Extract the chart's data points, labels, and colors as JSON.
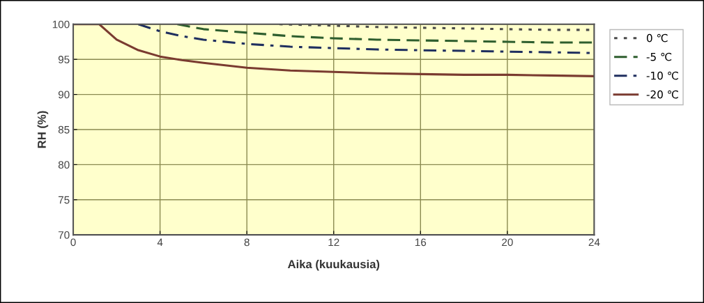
{
  "chart_data": {
    "type": "line",
    "xlabel": "Aika (kuukausia)",
    "ylabel": "RH (%)",
    "xlim": [
      0,
      24
    ],
    "xticks": [
      0,
      4,
      8,
      12,
      16,
      20,
      24
    ],
    "ylim": [
      70,
      100
    ],
    "yticks": [
      70,
      75,
      80,
      85,
      90,
      95,
      100
    ],
    "grid": true,
    "legend": "right",
    "marker": "none",
    "series": [
      {
        "name": "0 ℃",
        "color": "#4a4a4a",
        "line_style": "dotted",
        "x": [
          9.5,
          12,
          14,
          16,
          18,
          20,
          22,
          24
        ],
        "values": [
          100,
          99.8,
          99.6,
          99.5,
          99.4,
          99.3,
          99.2,
          99.2
        ]
      },
      {
        "name": "-5 ℃",
        "color": "#2e5e2e",
        "line_style": "dashed",
        "x": [
          4.8,
          6,
          8,
          10,
          12,
          14,
          16,
          18,
          20,
          22,
          24
        ],
        "values": [
          100,
          99.3,
          98.8,
          98.3,
          98.0,
          97.8,
          97.7,
          97.6,
          97.5,
          97.4,
          97.4
        ]
      },
      {
        "name": "-10 ℃",
        "color": "#1f2f5f",
        "line_style": "dashdot",
        "x": [
          3,
          4,
          5,
          6,
          8,
          10,
          12,
          14,
          16,
          18,
          20,
          22,
          24
        ],
        "values": [
          100,
          99.0,
          98.3,
          97.8,
          97.2,
          96.8,
          96.6,
          96.4,
          96.3,
          96.2,
          96.1,
          96.0,
          95.9
        ]
      },
      {
        "name": "-20 ℃",
        "color": "#7a3b30",
        "line_style": "solid",
        "x": [
          0,
          1.2,
          2,
          3,
          4,
          5,
          6,
          8,
          10,
          12,
          14,
          16,
          18,
          20,
          22,
          24
        ],
        "values": [
          100,
          100,
          97.8,
          96.3,
          95.4,
          94.9,
          94.5,
          93.8,
          93.4,
          93.2,
          93.0,
          92.9,
          92.8,
          92.8,
          92.7,
          92.6
        ]
      }
    ]
  }
}
